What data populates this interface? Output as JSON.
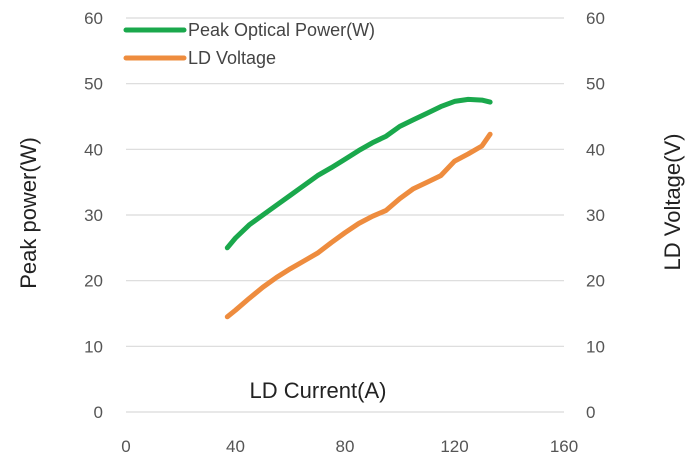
{
  "chart_data": {
    "type": "line",
    "title": "",
    "xlabel": "LD Current(A)",
    "ylabel": "Peak power(W)",
    "y2label": "LD Voltage(V)",
    "xlim": [
      0,
      160
    ],
    "ylim": [
      0,
      60
    ],
    "y2lim": [
      0,
      60
    ],
    "xticks": [
      0,
      40,
      80,
      120,
      160
    ],
    "yticks": [
      0,
      10,
      20,
      30,
      40,
      50,
      60
    ],
    "y2ticks": [
      0,
      10,
      20,
      30,
      40,
      50,
      60
    ],
    "grid": true,
    "legend_position": "top-left",
    "series": [
      {
        "name": "Peak Optical Power(W)",
        "axis": "left",
        "color": "#1aa84c",
        "x": [
          37,
          40,
          45,
          50,
          55,
          60,
          65,
          70,
          75,
          80,
          85,
          90,
          95,
          100,
          105,
          110,
          115,
          120,
          125,
          130,
          133
        ],
        "y": [
          25,
          26.5,
          28.5,
          30,
          31.5,
          33,
          34.5,
          36,
          37.2,
          38.5,
          39.8,
          41,
          42,
          43.5,
          44.5,
          45.5,
          46.5,
          47.3,
          47.6,
          47.5,
          47.2
        ]
      },
      {
        "name": "LD Voltage",
        "axis": "right",
        "color": "#ee8c3e",
        "x": [
          37,
          40,
          45,
          50,
          55,
          60,
          65,
          70,
          75,
          80,
          85,
          90,
          95,
          100,
          105,
          110,
          115,
          120,
          125,
          130,
          133
        ],
        "y": [
          14.5,
          15.5,
          17.3,
          19,
          20.5,
          21.8,
          23,
          24.2,
          25.8,
          27.3,
          28.7,
          29.8,
          30.7,
          32.5,
          34,
          35,
          36,
          38.2,
          39.3,
          40.5,
          42.3
        ]
      }
    ]
  }
}
